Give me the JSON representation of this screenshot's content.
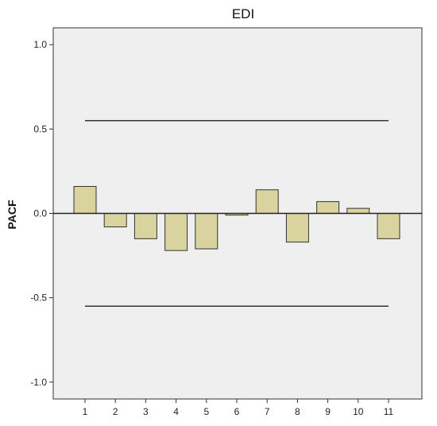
{
  "chart_data": {
    "type": "bar",
    "title": "EDI",
    "xlabel": "",
    "ylabel": "PACF",
    "categories": [
      "1",
      "2",
      "3",
      "4",
      "5",
      "6",
      "7",
      "8",
      "9",
      "10",
      "11"
    ],
    "values": [
      0.16,
      -0.08,
      -0.15,
      -0.22,
      -0.21,
      -0.01,
      0.14,
      -0.17,
      0.07,
      0.03,
      -0.15
    ],
    "ylim": [
      -1.1,
      1.1
    ],
    "yticks": [
      1.0,
      0.5,
      0.0,
      -0.5,
      -1.0
    ],
    "ytick_labels": [
      "1.0",
      "0.5",
      "0.0",
      "-0.5",
      "-1.0"
    ],
    "confidence_limits": {
      "upper": 0.55,
      "lower": -0.55
    },
    "grid": false,
    "colors": {
      "bar_fill": "#d9d39f",
      "bar_stroke": "#333333",
      "plot_background": "#efefef",
      "axis": "#333333",
      "limit_line": "#333333"
    }
  }
}
